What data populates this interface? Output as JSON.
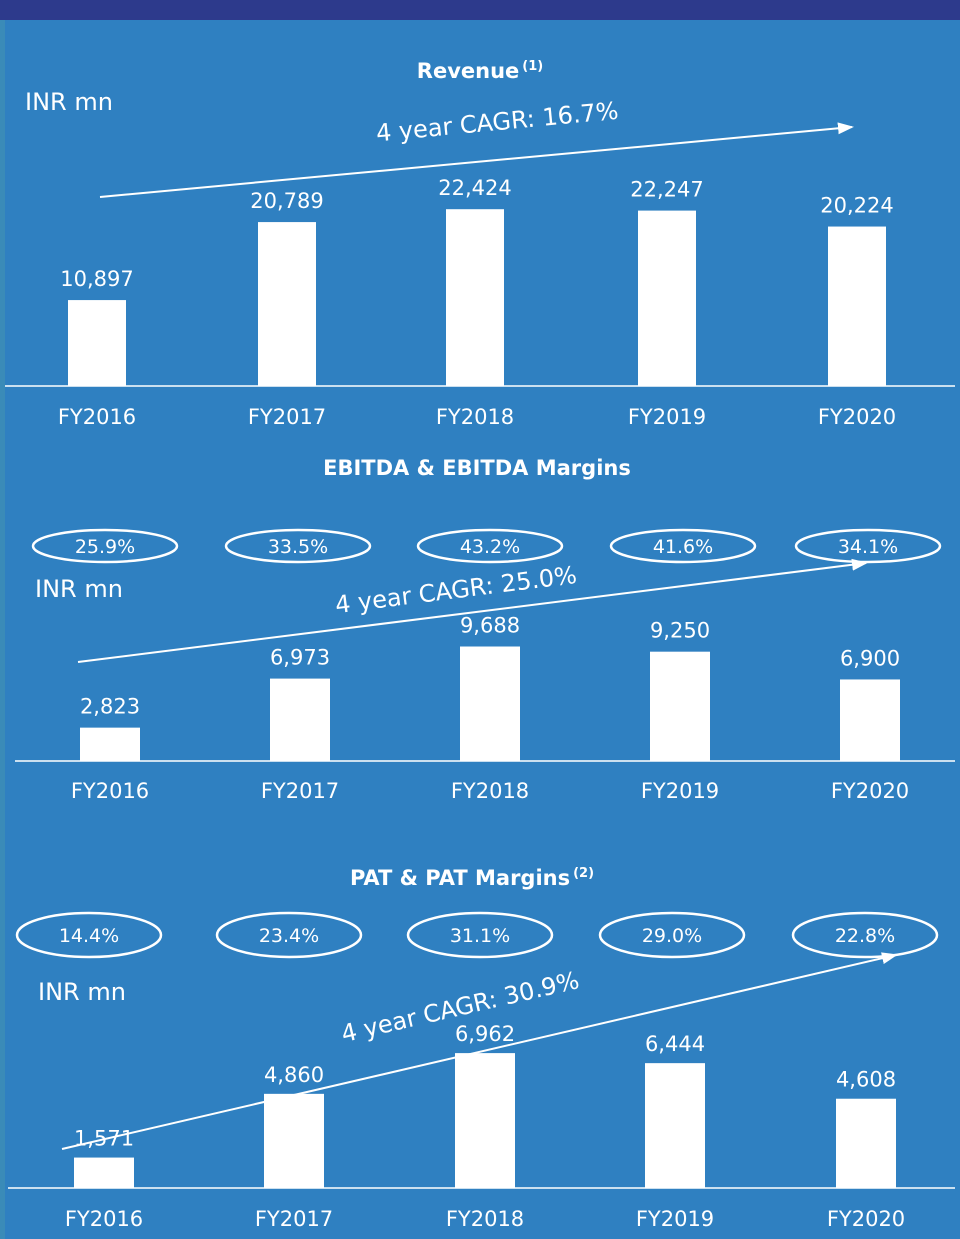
{
  "colors": {
    "background": "#2f80c1",
    "top_bar": "#2d3a8c",
    "bars": "#ffffff",
    "text": "#ffffff"
  },
  "chart_data": [
    {
      "type": "bar",
      "title": "Revenue",
      "title_superscript": "(1)",
      "unit": "INR mn",
      "categories": [
        "FY2016",
        "FY2017",
        "FY2018",
        "FY2019",
        "FY2020"
      ],
      "values": [
        10897,
        20789,
        22424,
        22247,
        20224
      ],
      "value_labels": [
        "10,897",
        "20,789",
        "22,424",
        "22,247",
        "20,224"
      ],
      "annotation": "4 year CAGR: 16.7%",
      "ylim": [
        0,
        26000
      ],
      "grid": false
    },
    {
      "type": "bar",
      "title": "EBITDA & EBITDA Margins",
      "unit": "INR mn",
      "categories": [
        "FY2016",
        "FY2017",
        "FY2018",
        "FY2019",
        "FY2020"
      ],
      "values": [
        2823,
        6973,
        9688,
        9250,
        6900
      ],
      "value_labels": [
        "2,823",
        "6,973",
        "9,688",
        "9,250",
        "6,900"
      ],
      "margins": [
        "25.9%",
        "33.5%",
        "43.2%",
        "41.6%",
        "34.1%"
      ],
      "annotation": "4 year CAGR: 25.0%",
      "ylim": [
        0,
        11000
      ],
      "grid": false
    },
    {
      "type": "bar",
      "title": "PAT & PAT Margins",
      "title_superscript": "(2)",
      "unit": "INR mn",
      "categories": [
        "FY2016",
        "FY2017",
        "FY2018",
        "FY2019",
        "FY2020"
      ],
      "values": [
        1571,
        4860,
        6962,
        6444,
        4608
      ],
      "value_labels": [
        "1,571",
        "4,860",
        "6,962",
        "6,444",
        "4,608"
      ],
      "margins": [
        "14.4%",
        "23.4%",
        "31.1%",
        "29.0%",
        "22.8%"
      ],
      "annotation": "4 year CAGR: 30.9%",
      "ylim": [
        0,
        8000
      ],
      "grid": false
    }
  ]
}
